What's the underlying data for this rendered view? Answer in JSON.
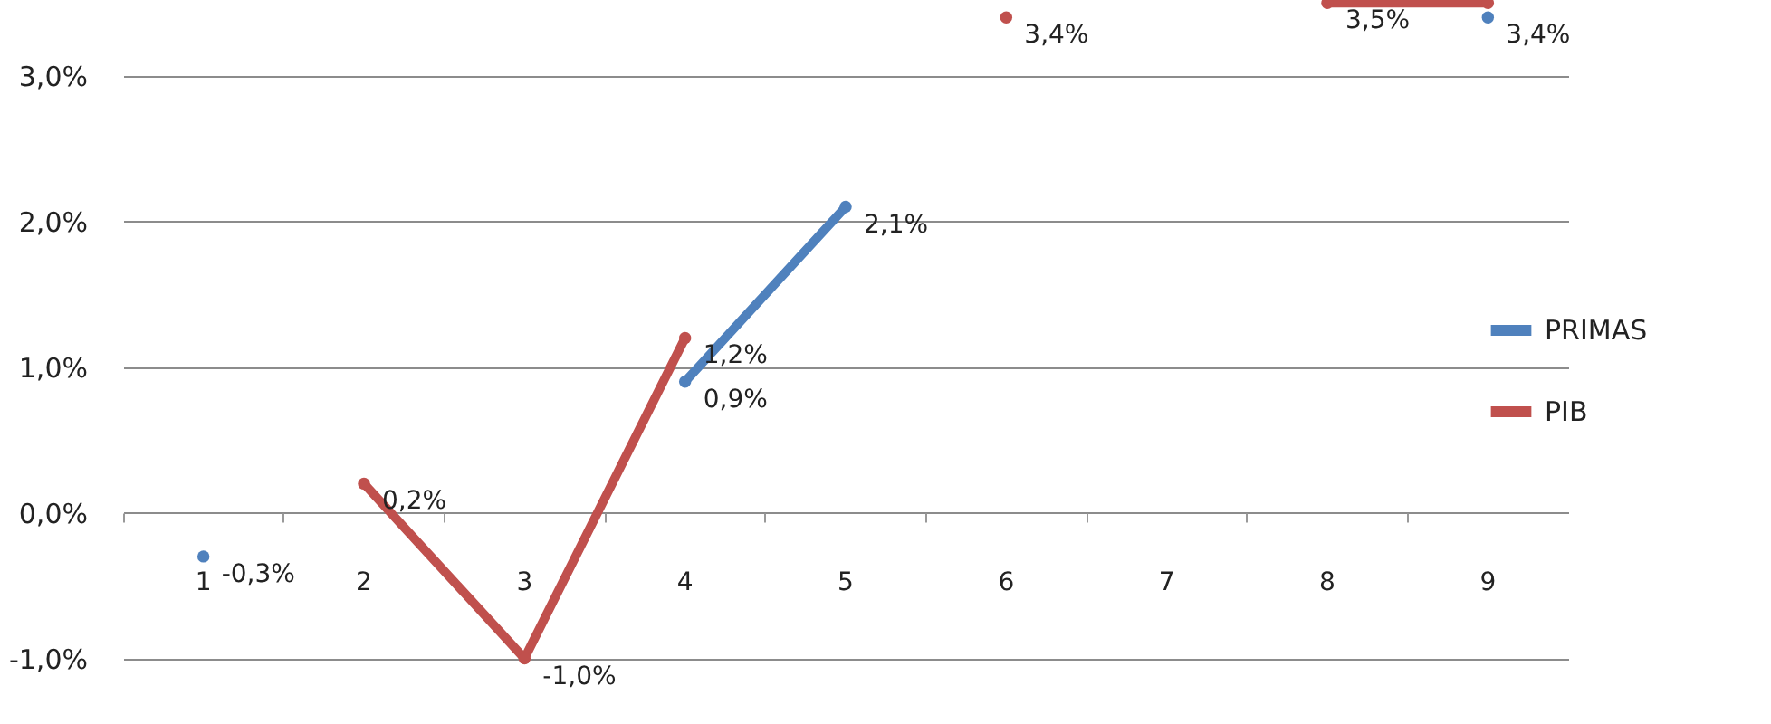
{
  "chart_data": {
    "type": "line",
    "categories": [
      "1",
      "2",
      "3",
      "4",
      "5",
      "6",
      "7",
      "8",
      "9"
    ],
    "series": [
      {
        "name": "PRIMAS",
        "color": "#4f81bd",
        "values": [
          -0.3,
          null,
          null,
          0.9,
          2.1,
          null,
          null,
          null,
          3.4
        ],
        "value_labels": [
          "-0,3%",
          null,
          null,
          "0,9%",
          "2,1%",
          null,
          null,
          null,
          "3,4%"
        ]
      },
      {
        "name": "PIB",
        "color": "#c0504d",
        "values": [
          null,
          0.2,
          -1.0,
          1.2,
          null,
          3.4,
          null,
          3.5,
          3.5
        ],
        "value_labels": [
          null,
          "0,2%",
          "-1,0%",
          "1,2%",
          null,
          "3,4%",
          null,
          "3,5%",
          null
        ]
      }
    ],
    "ylim": [
      -1.45,
      3.52
    ],
    "yticks": [
      {
        "value": -1,
        "label": "-1,0%"
      },
      {
        "value": 0,
        "label": "0,0%"
      },
      {
        "value": 1,
        "label": "1,0%"
      },
      {
        "value": 2,
        "label": "2,0%"
      },
      {
        "value": 3,
        "label": "3,0%"
      }
    ],
    "grid": "y",
    "legend": "right",
    "line_style": "solid",
    "marker": "circle"
  }
}
